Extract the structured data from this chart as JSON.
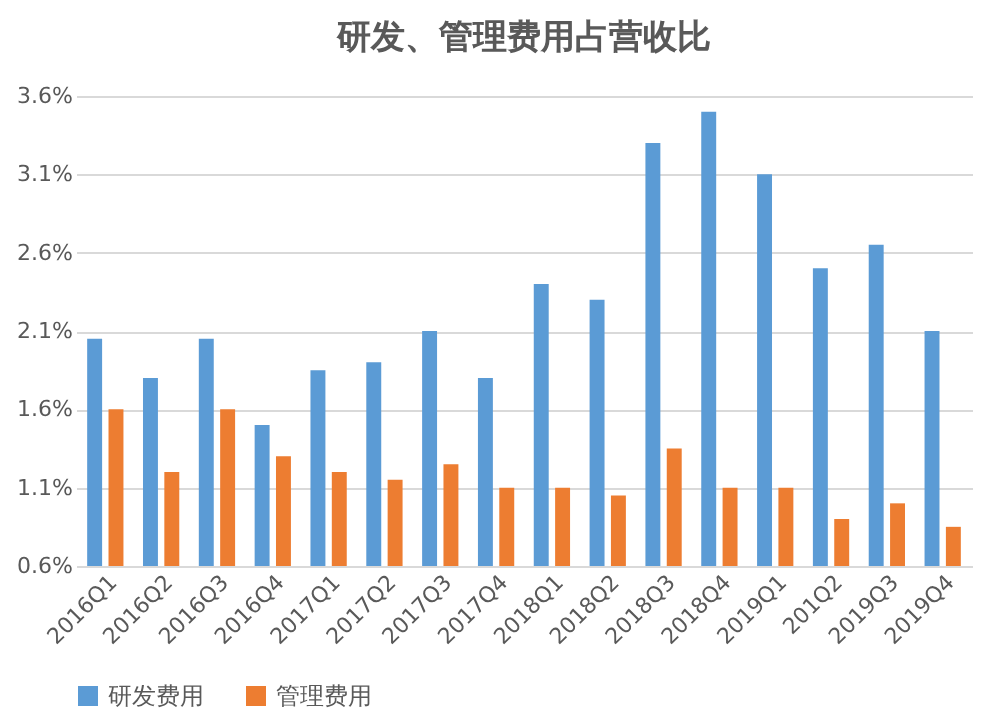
{
  "chart_data": {
    "type": "bar",
    "title": "研发、管理费用占营收比",
    "categories": [
      "2016Q1",
      "2016Q2",
      "2016Q3",
      "2016Q4",
      "2017Q1",
      "2017Q2",
      "2017Q3",
      "2017Q4",
      "2018Q1",
      "2018Q2",
      "2018Q3",
      "2018Q4",
      "2019Q1",
      "201Q2",
      "2019Q3",
      "2019Q4"
    ],
    "series": [
      {
        "name": "研发费用",
        "color": "#5b9bd5",
        "values": [
          2.05,
          1.8,
          2.05,
          1.5,
          1.85,
          1.9,
          2.1,
          1.8,
          2.4,
          2.3,
          3.3,
          3.5,
          3.1,
          2.5,
          2.65,
          2.1
        ]
      },
      {
        "name": "管理费用",
        "color": "#ed7d31",
        "values": [
          1.6,
          1.2,
          1.6,
          1.3,
          1.2,
          1.15,
          1.25,
          1.1,
          1.1,
          1.05,
          1.35,
          1.1,
          1.1,
          0.9,
          1.0,
          0.85
        ]
      }
    ],
    "ylim": [
      0.6,
      3.6
    ],
    "yticks": [
      {
        "value": 0.6,
        "label": "0.6%"
      },
      {
        "value": 1.1,
        "label": "1.1%"
      },
      {
        "value": 1.6,
        "label": "1.6%"
      },
      {
        "value": 2.1,
        "label": "2.1%"
      },
      {
        "value": 2.6,
        "label": "2.6%"
      },
      {
        "value": 3.1,
        "label": "3.1%"
      },
      {
        "value": 3.6,
        "label": "3.6%"
      }
    ],
    "grid": "y",
    "legend": "bottom"
  }
}
